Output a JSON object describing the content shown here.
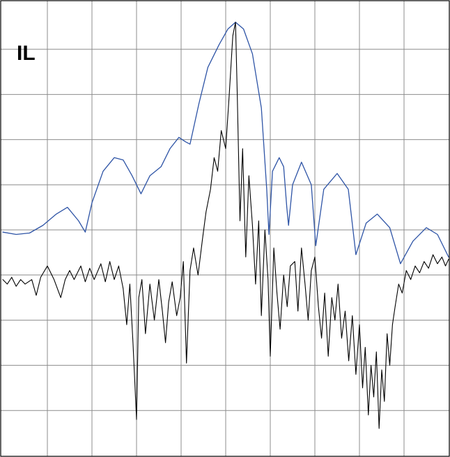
{
  "chart_data": {
    "type": "line",
    "title": "",
    "xlabel": "",
    "ylabel": "",
    "corner_label": "IL",
    "grid": true,
    "x_divisions": 10,
    "y_divisions": 10,
    "xlim": [
      0,
      10
    ],
    "ylim": [
      0,
      10
    ],
    "series": [
      {
        "color": "#2e54a6",
        "points": [
          [
            0.0,
            4.95
          ],
          [
            0.3,
            4.9
          ],
          [
            0.6,
            4.93
          ],
          [
            0.9,
            5.1
          ],
          [
            1.2,
            5.35
          ],
          [
            1.45,
            5.5
          ],
          [
            1.7,
            5.2
          ],
          [
            1.85,
            4.95
          ],
          [
            2.0,
            5.6
          ],
          [
            2.25,
            6.3
          ],
          [
            2.5,
            6.6
          ],
          [
            2.7,
            6.55
          ],
          [
            2.9,
            6.2
          ],
          [
            3.1,
            5.8
          ],
          [
            3.3,
            6.2
          ],
          [
            3.55,
            6.4
          ],
          [
            3.75,
            6.8
          ],
          [
            3.95,
            7.05
          ],
          [
            4.1,
            6.95
          ],
          [
            4.2,
            6.9
          ],
          [
            4.4,
            7.8
          ],
          [
            4.6,
            8.6
          ],
          [
            4.85,
            9.1
          ],
          [
            5.05,
            9.45
          ],
          [
            5.22,
            9.6
          ],
          [
            5.4,
            9.45
          ],
          [
            5.6,
            8.9
          ],
          [
            5.8,
            7.7
          ],
          [
            5.92,
            5.9
          ],
          [
            5.97,
            4.9
          ],
          [
            6.05,
            6.3
          ],
          [
            6.2,
            6.6
          ],
          [
            6.3,
            6.4
          ],
          [
            6.37,
            5.5
          ],
          [
            6.41,
            5.1
          ],
          [
            6.5,
            6.0
          ],
          [
            6.7,
            6.5
          ],
          [
            6.92,
            6.0
          ],
          [
            7.02,
            4.65
          ],
          [
            7.2,
            5.9
          ],
          [
            7.5,
            6.25
          ],
          [
            7.75,
            5.9
          ],
          [
            7.92,
            4.45
          ],
          [
            8.15,
            5.15
          ],
          [
            8.4,
            5.35
          ],
          [
            8.68,
            5.05
          ],
          [
            8.92,
            4.25
          ],
          [
            9.2,
            4.75
          ],
          [
            9.5,
            5.05
          ],
          [
            9.75,
            4.9
          ],
          [
            10.0,
            4.4
          ]
        ]
      },
      {
        "color": "#000000",
        "points": [
          [
            0.0,
            3.9
          ],
          [
            0.1,
            3.8
          ],
          [
            0.2,
            3.95
          ],
          [
            0.3,
            3.75
          ],
          [
            0.4,
            3.9
          ],
          [
            0.5,
            3.8
          ],
          [
            0.65,
            3.9
          ],
          [
            0.75,
            3.55
          ],
          [
            0.85,
            3.95
          ],
          [
            1.0,
            4.2
          ],
          [
            1.15,
            3.9
          ],
          [
            1.3,
            3.5
          ],
          [
            1.4,
            3.9
          ],
          [
            1.5,
            4.1
          ],
          [
            1.6,
            3.9
          ],
          [
            1.75,
            4.2
          ],
          [
            1.85,
            3.85
          ],
          [
            1.95,
            4.15
          ],
          [
            2.05,
            3.9
          ],
          [
            2.2,
            4.25
          ],
          [
            2.3,
            3.85
          ],
          [
            2.4,
            4.3
          ],
          [
            2.5,
            3.9
          ],
          [
            2.6,
            4.2
          ],
          [
            2.7,
            3.7
          ],
          [
            2.78,
            2.9
          ],
          [
            2.85,
            3.8
          ],
          [
            2.92,
            2.5
          ],
          [
            3.0,
            0.8
          ],
          [
            3.05,
            3.5
          ],
          [
            3.12,
            3.9
          ],
          [
            3.2,
            2.7
          ],
          [
            3.3,
            3.8
          ],
          [
            3.4,
            3.0
          ],
          [
            3.5,
            3.9
          ],
          [
            3.58,
            3.2
          ],
          [
            3.65,
            2.5
          ],
          [
            3.72,
            3.4
          ],
          [
            3.8,
            3.85
          ],
          [
            3.9,
            3.1
          ],
          [
            3.98,
            3.5
          ],
          [
            4.05,
            4.3
          ],
          [
            4.12,
            2.05
          ],
          [
            4.2,
            4.1
          ],
          [
            4.28,
            4.6
          ],
          [
            4.38,
            4.0
          ],
          [
            4.48,
            4.8
          ],
          [
            4.56,
            5.4
          ],
          [
            4.66,
            5.9
          ],
          [
            4.74,
            6.6
          ],
          [
            4.82,
            6.3
          ],
          [
            4.9,
            7.2
          ],
          [
            5.0,
            6.8
          ],
          [
            5.08,
            8.0
          ],
          [
            5.16,
            9.3
          ],
          [
            5.22,
            9.6
          ],
          [
            5.26,
            8.0
          ],
          [
            5.32,
            5.2
          ],
          [
            5.38,
            6.8
          ],
          [
            5.45,
            4.4
          ],
          [
            5.52,
            6.2
          ],
          [
            5.6,
            5.1
          ],
          [
            5.67,
            3.8
          ],
          [
            5.74,
            5.2
          ],
          [
            5.8,
            3.1
          ],
          [
            5.88,
            5.0
          ],
          [
            5.95,
            3.9
          ],
          [
            6.0,
            2.2
          ],
          [
            6.08,
            4.6
          ],
          [
            6.15,
            3.6
          ],
          [
            6.22,
            2.8
          ],
          [
            6.3,
            4.0
          ],
          [
            6.38,
            3.3
          ],
          [
            6.45,
            4.2
          ],
          [
            6.55,
            4.3
          ],
          [
            6.62,
            3.2
          ],
          [
            6.7,
            4.6
          ],
          [
            6.78,
            3.8
          ],
          [
            6.85,
            3.0
          ],
          [
            6.92,
            4.1
          ],
          [
            7.0,
            4.4
          ],
          [
            7.08,
            3.3
          ],
          [
            7.15,
            2.6
          ],
          [
            7.22,
            3.6
          ],
          [
            7.3,
            2.2
          ],
          [
            7.38,
            3.5
          ],
          [
            7.45,
            3.0
          ],
          [
            7.52,
            3.8
          ],
          [
            7.6,
            2.6
          ],
          [
            7.68,
            3.2
          ],
          [
            7.76,
            2.1
          ],
          [
            7.84,
            3.1
          ],
          [
            7.92,
            1.8
          ],
          [
            8.0,
            2.9
          ],
          [
            8.07,
            1.5
          ],
          [
            8.13,
            2.4
          ],
          [
            8.2,
            0.9
          ],
          [
            8.26,
            2.0
          ],
          [
            8.32,
            1.3
          ],
          [
            8.38,
            2.3
          ],
          [
            8.44,
            0.6
          ],
          [
            8.5,
            1.9
          ],
          [
            8.56,
            1.2
          ],
          [
            8.62,
            2.7
          ],
          [
            8.68,
            2.0
          ],
          [
            8.74,
            2.9
          ],
          [
            8.8,
            3.3
          ],
          [
            8.88,
            3.8
          ],
          [
            8.96,
            3.6
          ],
          [
            9.05,
            4.1
          ],
          [
            9.15,
            3.9
          ],
          [
            9.25,
            4.2
          ],
          [
            9.35,
            4.05
          ],
          [
            9.45,
            4.3
          ],
          [
            9.55,
            4.15
          ],
          [
            9.65,
            4.45
          ],
          [
            9.75,
            4.25
          ],
          [
            9.85,
            4.4
          ],
          [
            9.93,
            4.2
          ],
          [
            10.0,
            4.35
          ]
        ]
      }
    ]
  }
}
